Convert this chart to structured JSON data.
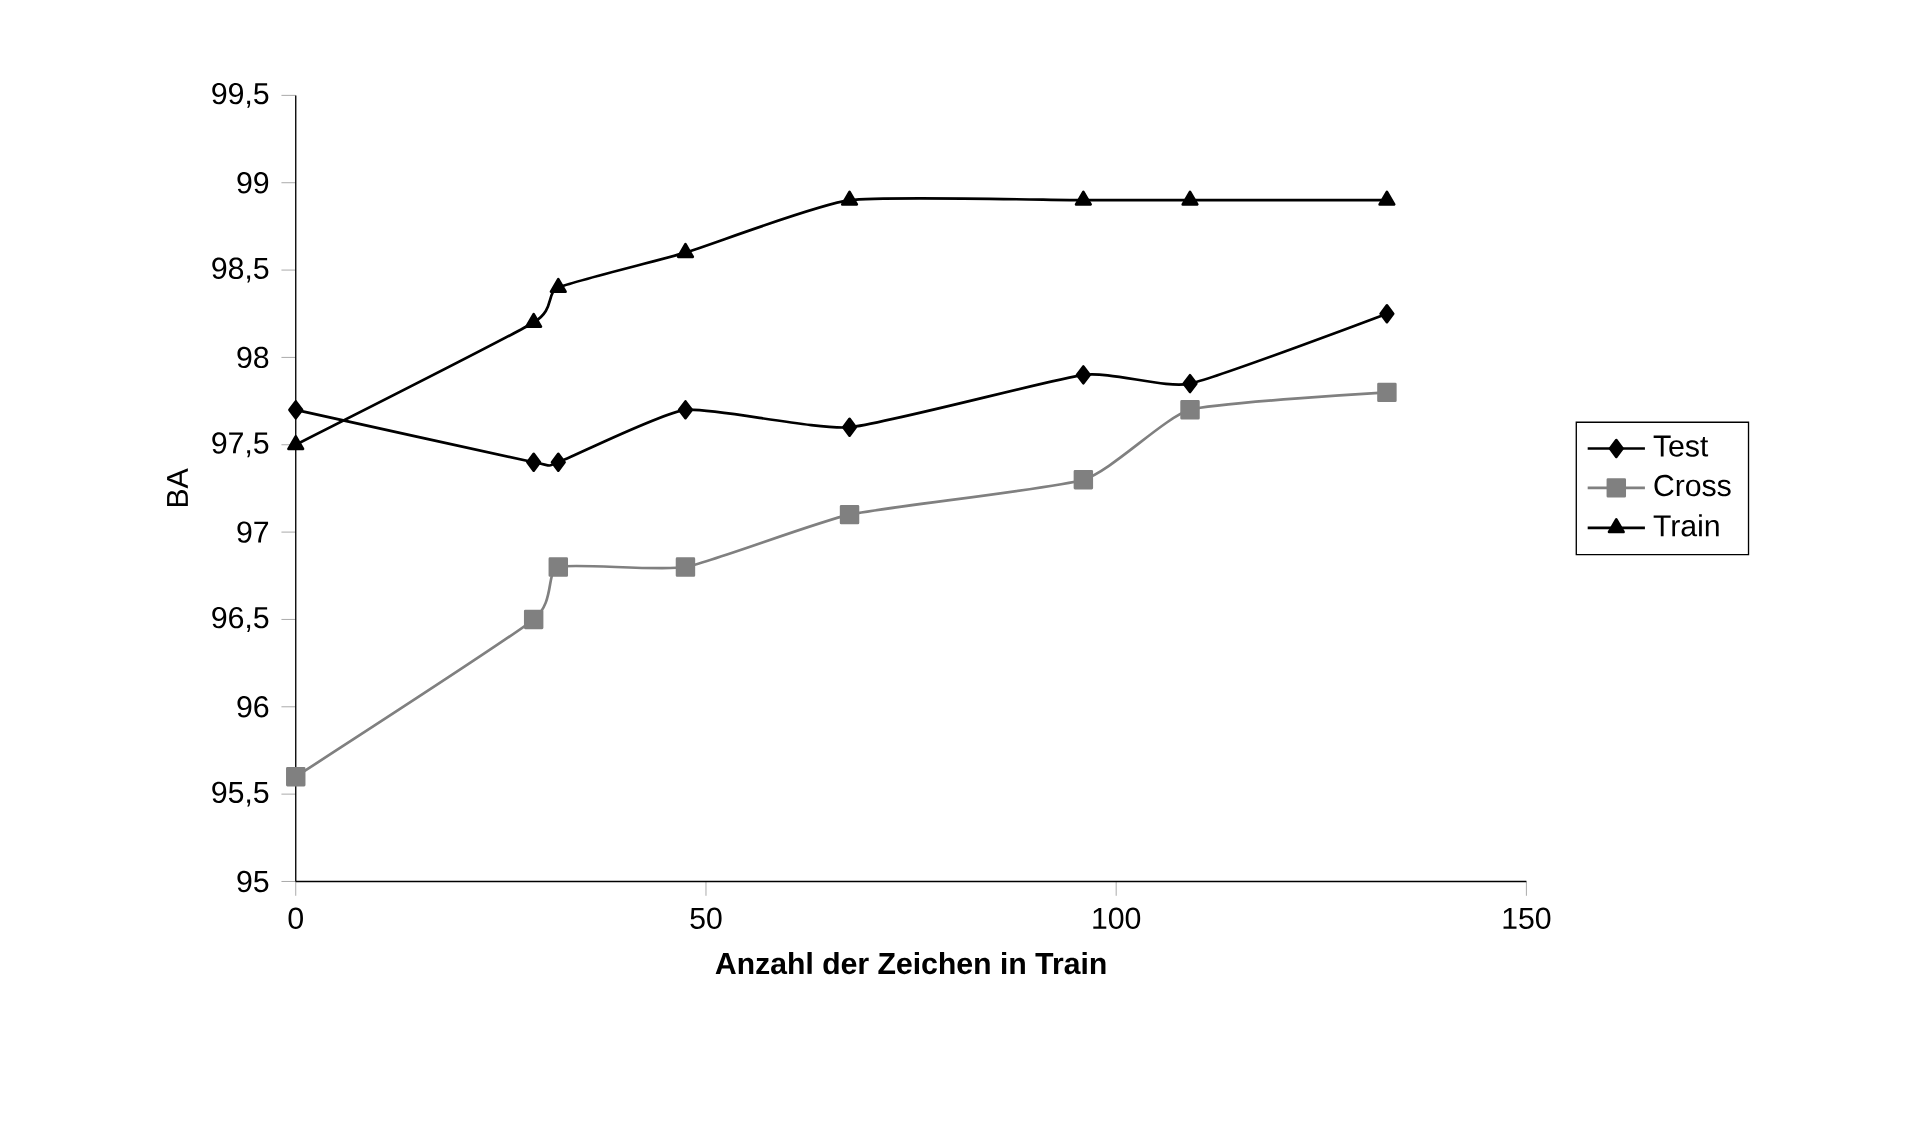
{
  "chart_data": {
    "type": "line",
    "xlabel": "Anzahl der Zeichen in Train",
    "ylabel": "BA",
    "x": [
      0,
      29,
      32,
      47.5,
      67.5,
      96,
      109,
      133
    ],
    "series": [
      {
        "name": "Test",
        "color": "#000000",
        "marker": "diamond",
        "values": [
          97.7,
          97.4,
          97.4,
          97.7,
          97.6,
          97.9,
          97.85,
          98.25
        ]
      },
      {
        "name": "Cross",
        "color": "#808080",
        "marker": "square",
        "values": [
          95.6,
          96.5,
          96.8,
          96.8,
          97.1,
          97.3,
          97.7,
          97.8
        ]
      },
      {
        "name": "Train",
        "color": "#000000",
        "marker": "triangle",
        "values": [
          97.5,
          98.2,
          98.4,
          98.6,
          98.9,
          98.9,
          98.9,
          98.9
        ]
      }
    ],
    "xlim": [
      0,
      150
    ],
    "xticks": [
      0,
      50,
      100,
      150
    ],
    "ylim": [
      95,
      99.5
    ],
    "yticks": [
      {
        "value": 95,
        "label": "95"
      },
      {
        "value": 95.5,
        "label": "95,5"
      },
      {
        "value": 96,
        "label": "96"
      },
      {
        "value": 96.5,
        "label": "96,5"
      },
      {
        "value": 97,
        "label": "97"
      },
      {
        "value": 97.5,
        "label": "97,5"
      },
      {
        "value": 98,
        "label": "98"
      },
      {
        "value": 98.5,
        "label": "98,5"
      },
      {
        "value": 99,
        "label": "99"
      },
      {
        "value": 99.5,
        "label": "99,5"
      }
    ],
    "legend": "right",
    "line_style": "solid"
  }
}
